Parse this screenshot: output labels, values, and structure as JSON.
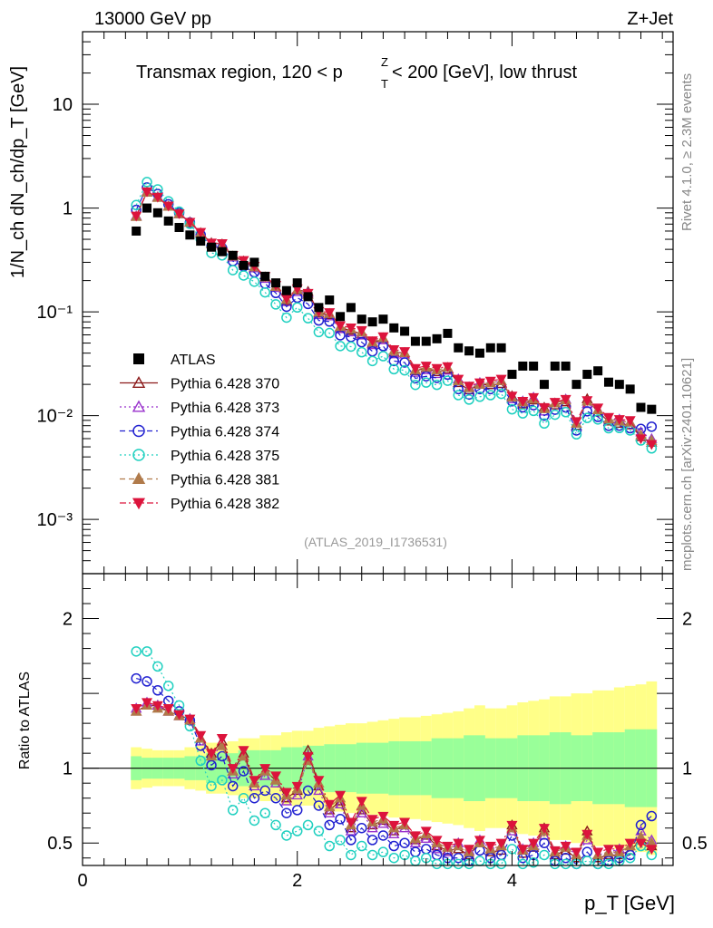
{
  "header": {
    "left": "13000 GeV pp",
    "right": "Z+Jet",
    "region": "Transmax region, 120 < p",
    "region_sup": "Z",
    "region_sub": "T",
    "region_end": " < 200 [GeV], low thrust",
    "analysis": "(ATLAS_2019_I1736531)"
  },
  "side_labels": {
    "rivet": "Rivet 4.1.0, ≥ 2.3M events",
    "mcplots": "mcplots.cern.ch [arXiv:2401.10621]"
  },
  "axes": {
    "ylabel_top": "1/N_ch dN_ch/dp_T [GeV]",
    "ylabel_bottom": "Ratio to ATLAS",
    "xlabel": "p_T [GeV]",
    "x_ticks": [
      "0",
      "2",
      "4"
    ],
    "y_top_ticks": [
      "10",
      "1",
      "10⁻¹",
      "10⁻²",
      "10⁻³"
    ],
    "y_ratio_ticks": [
      "2",
      "1",
      "0.5"
    ]
  },
  "legend": [
    {
      "label": "ATLAS",
      "color": "#000000",
      "marker": "filled-square",
      "dash": "none"
    },
    {
      "label": "Pythia 6.428 370",
      "color": "#8b1a1a",
      "marker": "open-triangle-up",
      "dash": "solid"
    },
    {
      "label": "Pythia 6.428 373",
      "color": "#9932cc",
      "marker": "open-triangle-up",
      "dash": "dotted"
    },
    {
      "label": "Pythia 6.428 374",
      "color": "#2020d0",
      "marker": "open-circle",
      "dash": "dashed"
    },
    {
      "label": "Pythia 6.428 375",
      "color": "#20d0c0",
      "marker": "open-circle",
      "dash": "dotted"
    },
    {
      "label": "Pythia 6.428 381",
      "color": "#b07a4a",
      "marker": "filled-triangle-up",
      "dash": "dashed"
    },
    {
      "label": "Pythia 6.428 382",
      "color": "#dc143c",
      "marker": "filled-triangle-down",
      "dash": "dashdot"
    }
  ],
  "chart_data": {
    "type": "scatter",
    "xlim": [
      0,
      5.5
    ],
    "ylim_top": [
      0.0003,
      50
    ],
    "ylim_ratio": [
      0.35,
      2.3
    ],
    "x": [
      0.5,
      0.6,
      0.7,
      0.8,
      0.9,
      1.0,
      1.1,
      1.2,
      1.3,
      1.4,
      1.5,
      1.6,
      1.7,
      1.8,
      1.9,
      2.0,
      2.1,
      2.2,
      2.3,
      2.4,
      2.5,
      2.6,
      2.7,
      2.8,
      2.9,
      3.0,
      3.1,
      3.2,
      3.3,
      3.4,
      3.5,
      3.6,
      3.7,
      3.8,
      3.9,
      4.0,
      4.1,
      4.2,
      4.3,
      4.4,
      4.5,
      4.6,
      4.7,
      4.8,
      4.9,
      5.0,
      5.1,
      5.2,
      5.3
    ],
    "atlas": [
      0.6,
      1.0,
      0.9,
      0.75,
      0.65,
      0.55,
      0.48,
      0.42,
      0.38,
      0.35,
      0.28,
      0.3,
      0.22,
      0.19,
      0.16,
      0.19,
      0.14,
      0.11,
      0.13,
      0.09,
      0.11,
      0.085,
      0.08,
      0.085,
      0.07,
      0.065,
      0.052,
      0.052,
      0.055,
      0.062,
      0.045,
      0.042,
      0.04,
      0.045,
      0.045,
      0.025,
      0.03,
      0.03,
      0.02,
      0.03,
      0.03,
      0.02,
      0.025,
      0.027,
      0.021,
      0.02,
      0.018,
      0.012,
      0.0115
    ],
    "atlas_band_green": [
      0.08,
      0.07,
      0.07,
      0.07,
      0.07,
      0.08,
      0.08,
      0.1,
      0.1,
      0.1,
      0.12,
      0.12,
      0.12,
      0.12,
      0.14,
      0.14,
      0.15,
      0.15,
      0.16,
      0.16,
      0.16,
      0.17,
      0.17,
      0.17,
      0.18,
      0.18,
      0.18,
      0.18,
      0.2,
      0.2,
      0.2,
      0.22,
      0.22,
      0.2,
      0.2,
      0.2,
      0.22,
      0.22,
      0.22,
      0.24,
      0.24,
      0.22,
      0.22,
      0.24,
      0.24,
      0.24,
      0.26,
      0.26,
      0.26
    ],
    "atlas_band_yellow": [
      0.14,
      0.13,
      0.12,
      0.12,
      0.12,
      0.14,
      0.15,
      0.17,
      0.17,
      0.18,
      0.2,
      0.2,
      0.22,
      0.22,
      0.24,
      0.25,
      0.25,
      0.27,
      0.28,
      0.29,
      0.3,
      0.3,
      0.31,
      0.32,
      0.33,
      0.34,
      0.34,
      0.35,
      0.36,
      0.37,
      0.38,
      0.4,
      0.42,
      0.4,
      0.4,
      0.42,
      0.44,
      0.45,
      0.46,
      0.48,
      0.48,
      0.5,
      0.5,
      0.52,
      0.52,
      0.54,
      0.55,
      0.56,
      0.58
    ],
    "series": [
      {
        "name": "Pythia 6.428 370",
        "ratio": [
          1.38,
          1.42,
          1.42,
          1.38,
          1.35,
          1.33,
          1.2,
          1.1,
          1.18,
          0.98,
          1.1,
          0.9,
          0.98,
          0.92,
          0.8,
          0.85,
          1.12,
          0.88,
          0.72,
          0.78,
          0.6,
          0.72,
          0.62,
          0.65,
          0.58,
          0.62,
          0.52,
          0.55,
          0.48,
          0.45,
          0.46,
          0.42,
          0.5,
          0.44,
          0.45,
          0.62,
          0.43,
          0.47,
          0.6,
          0.42,
          0.45,
          0.4,
          0.58,
          0.4,
          0.42,
          0.42,
          0.45,
          0.52,
          0.48
        ]
      },
      {
        "name": "Pythia 6.428 373",
        "ratio": [
          1.4,
          1.44,
          1.42,
          1.38,
          1.35,
          1.33,
          1.18,
          1.08,
          1.15,
          0.96,
          1.08,
          0.88,
          0.95,
          0.9,
          0.78,
          0.82,
          1.08,
          0.85,
          0.7,
          0.76,
          0.58,
          0.7,
          0.6,
          0.63,
          0.56,
          0.6,
          0.5,
          0.53,
          0.46,
          0.44,
          0.5,
          0.45,
          0.52,
          0.46,
          0.48,
          0.58,
          0.46,
          0.5,
          0.55,
          0.44,
          0.48,
          0.42,
          0.52,
          0.42,
          0.44,
          0.46,
          0.48,
          0.58,
          0.52
        ]
      },
      {
        "name": "Pythia 6.428 374",
        "ratio": [
          1.6,
          1.58,
          1.52,
          1.45,
          1.38,
          1.32,
          1.15,
          1.02,
          1.08,
          0.88,
          0.98,
          0.8,
          0.85,
          0.8,
          0.7,
          0.72,
          0.85,
          0.75,
          0.62,
          0.66,
          0.52,
          0.6,
          0.52,
          0.55,
          0.48,
          0.5,
          0.44,
          0.46,
          0.42,
          0.4,
          0.4,
          0.38,
          0.45,
          0.4,
          0.42,
          0.55,
          0.4,
          0.42,
          0.5,
          0.38,
          0.4,
          0.36,
          0.44,
          0.36,
          0.38,
          0.4,
          0.42,
          0.62,
          0.68
        ]
      },
      {
        "name": "Pythia 6.428 375",
        "ratio": [
          1.78,
          1.78,
          1.68,
          1.55,
          1.42,
          1.28,
          1.05,
          0.88,
          0.92,
          0.72,
          0.8,
          0.65,
          0.7,
          0.62,
          0.55,
          0.58,
          0.62,
          0.58,
          0.48,
          0.52,
          0.42,
          0.48,
          0.42,
          0.44,
          0.4,
          0.42,
          0.38,
          0.4,
          0.36,
          0.35,
          0.35,
          0.34,
          0.38,
          0.35,
          0.36,
          0.46,
          0.35,
          0.37,
          0.42,
          0.34,
          0.36,
          0.33,
          0.38,
          0.34,
          0.36,
          0.38,
          0.4,
          0.48,
          0.42
        ]
      },
      {
        "name": "Pythia 6.428 381",
        "ratio": [
          1.38,
          1.42,
          1.4,
          1.38,
          1.35,
          1.32,
          1.2,
          1.08,
          1.15,
          0.98,
          1.08,
          0.9,
          0.98,
          0.92,
          0.82,
          0.86,
          1.05,
          0.9,
          0.74,
          0.8,
          0.62,
          0.75,
          0.64,
          0.66,
          0.6,
          0.62,
          0.53,
          0.56,
          0.5,
          0.47,
          0.48,
          0.44,
          0.5,
          0.46,
          0.48,
          0.6,
          0.45,
          0.48,
          0.58,
          0.44,
          0.47,
          0.42,
          0.55,
          0.42,
          0.44,
          0.44,
          0.48,
          0.54,
          0.5
        ]
      },
      {
        "name": "Pythia 6.428 382",
        "ratio": [
          1.4,
          1.44,
          1.42,
          1.4,
          1.36,
          1.33,
          1.22,
          1.1,
          1.2,
          1.0,
          1.12,
          0.92,
          1.0,
          0.95,
          0.84,
          0.88,
          1.08,
          0.92,
          0.76,
          0.82,
          0.64,
          0.78,
          0.66,
          0.68,
          0.62,
          0.64,
          0.55,
          0.58,
          0.52,
          0.48,
          0.5,
          0.46,
          0.52,
          0.48,
          0.5,
          0.62,
          0.46,
          0.5,
          0.6,
          0.45,
          0.48,
          0.44,
          0.56,
          0.44,
          0.46,
          0.46,
          0.5,
          0.5,
          0.46
        ]
      }
    ]
  }
}
